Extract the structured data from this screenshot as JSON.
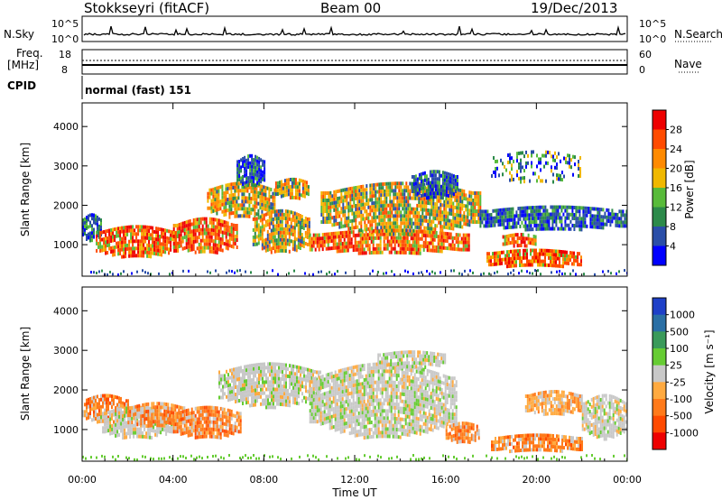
{
  "header": {
    "station": "Stokkseyri (fitACF)",
    "beam": "Beam 00",
    "date": "19/Dec/2013"
  },
  "top_panels": {
    "nsky_label": "N.Sky",
    "nsky_ticks": [
      "10^5",
      "10^0"
    ],
    "nsearch_label": "N.Search",
    "nsearch_ticks": [
      "10^5",
      "10^0"
    ],
    "freq_label_1": "Freq.",
    "freq_label_2": "[MHz]",
    "freq_ticks": [
      "18",
      "8"
    ],
    "nave_label": "Nave",
    "nave_ticks": [
      "60",
      "0"
    ],
    "cpid_label": "CPID",
    "cpid_value": "normal (fast) 151"
  },
  "chart_data": [
    {
      "type": "heatmap",
      "name": "power",
      "ylabel": "Slant Range [km]",
      "yticks": [
        "1000",
        "2000",
        "3000",
        "4000"
      ],
      "ylim": [
        200,
        4600
      ],
      "xlim": [
        0,
        24
      ],
      "colorbar_label": "Power [dB]",
      "colorbar_ticks": [
        "4",
        "8",
        "12",
        "16",
        "20",
        "24",
        "28"
      ],
      "colorbar_colors": [
        "#0000ff",
        "#2a4ea8",
        "#2c8a4a",
        "#58bb3a",
        "#f0b800",
        "#ff8a00",
        "#ff4b00",
        "#ee0000"
      ],
      "echo_regions": [
        {
          "t0": 0.0,
          "t1": 0.8,
          "r0": 1100,
          "r1": 1800,
          "level": "low"
        },
        {
          "t0": 0.6,
          "t1": 4.2,
          "r0": 700,
          "r1": 1500,
          "level": "high"
        },
        {
          "t0": 4.0,
          "t1": 6.8,
          "r0": 800,
          "r1": 1700,
          "level": "high"
        },
        {
          "t0": 5.5,
          "t1": 8.5,
          "r0": 1700,
          "r1": 2600,
          "level": "mid"
        },
        {
          "t0": 6.8,
          "t1": 8.0,
          "r0": 2500,
          "r1": 3300,
          "level": "low"
        },
        {
          "t0": 7.5,
          "t1": 10.0,
          "r0": 800,
          "r1": 1900,
          "level": "mid"
        },
        {
          "t0": 8.5,
          "t1": 10.0,
          "r0": 2200,
          "r1": 2700,
          "level": "mid"
        },
        {
          "t0": 10.0,
          "t1": 17.0,
          "r0": 800,
          "r1": 1400,
          "level": "high"
        },
        {
          "t0": 10.5,
          "t1": 17.5,
          "r0": 1300,
          "r1": 2600,
          "level": "mid"
        },
        {
          "t0": 14.5,
          "t1": 16.5,
          "r0": 2200,
          "r1": 2900,
          "level": "low"
        },
        {
          "t0": 17.8,
          "t1": 22.0,
          "r0": 450,
          "r1": 900,
          "level": "high"
        },
        {
          "t0": 18.5,
          "t1": 20.0,
          "r0": 1000,
          "r1": 1300,
          "level": "high"
        },
        {
          "t0": 17.5,
          "t1": 24.0,
          "r0": 1400,
          "r1": 2000,
          "level": "low"
        },
        {
          "t0": 18.0,
          "t1": 22.0,
          "r0": 2600,
          "r1": 3400,
          "level": "sparse"
        }
      ]
    },
    {
      "type": "heatmap",
      "name": "velocity",
      "ylabel": "Slant Range [km]",
      "yticks": [
        "1000",
        "2000",
        "3000",
        "4000"
      ],
      "ylim": [
        200,
        4600
      ],
      "xlim": [
        0,
        24
      ],
      "xlabel": "Time UT",
      "xticks": [
        "00:00",
        "04:00",
        "08:00",
        "12:00",
        "16:00",
        "20:00",
        "00:00"
      ],
      "colorbar_label": "Velocity [m s⁻¹]",
      "colorbar_ticks": [
        "1000",
        "500",
        "100",
        "25",
        "-25",
        "-100",
        "-500",
        "-1000"
      ],
      "colorbar_colors": [
        "#1e40c8",
        "#2a6fa5",
        "#3a9a5a",
        "#66cc33",
        "#c8c8c8",
        "#ffaa40",
        "#ff7a1a",
        "#ff4a00",
        "#ee0000"
      ],
      "echo_regions": [
        {
          "t0": 0.0,
          "t1": 2.0,
          "r0": 1200,
          "r1": 1900,
          "level": "away_mid"
        },
        {
          "t0": 0.8,
          "t1": 4.0,
          "r0": 800,
          "r1": 1600,
          "level": "zero"
        },
        {
          "t0": 2.0,
          "t1": 4.5,
          "r0": 1100,
          "r1": 1700,
          "level": "away_mid"
        },
        {
          "t0": 4.0,
          "t1": 7.0,
          "r0": 800,
          "r1": 1600,
          "level": "away_mid"
        },
        {
          "t0": 6.0,
          "t1": 10.5,
          "r0": 1600,
          "r1": 2700,
          "level": "zero"
        },
        {
          "t0": 10.0,
          "t1": 16.5,
          "r0": 800,
          "r1": 2700,
          "level": "zero"
        },
        {
          "t0": 13.0,
          "t1": 16.0,
          "r0": 2600,
          "r1": 3000,
          "level": "zero"
        },
        {
          "t0": 16.0,
          "t1": 17.5,
          "r0": 700,
          "r1": 1200,
          "level": "away_mid"
        },
        {
          "t0": 18.0,
          "t1": 22.0,
          "r0": 450,
          "r1": 900,
          "level": "away_mid"
        },
        {
          "t0": 19.5,
          "t1": 22.0,
          "r0": 1400,
          "r1": 2000,
          "level": "away_low"
        },
        {
          "t0": 22.0,
          "t1": 24.0,
          "r0": 800,
          "r1": 1900,
          "level": "zero"
        }
      ]
    }
  ]
}
